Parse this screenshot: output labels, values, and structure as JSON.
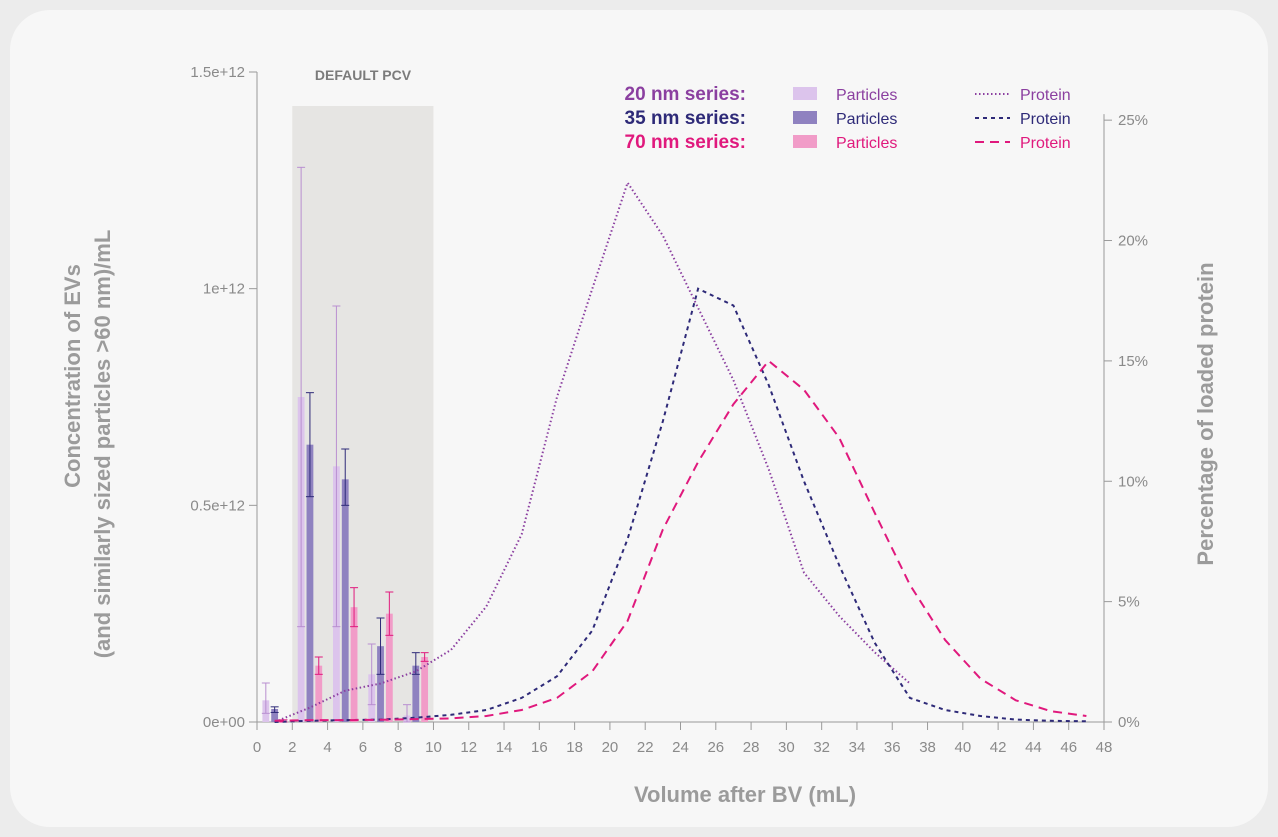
{
  "chart_data": {
    "type": "bar",
    "band_label": "DEFAULT PCV",
    "band_range": [
      2,
      10
    ],
    "xlabel": "Volume after BV (mL)",
    "ylabel_left_line1": "Concentration of EVs",
    "ylabel_left_line2": "(and similarly sized particles >60 nm)/mL",
    "ylabel_right": "Percentage of loaded protein",
    "xlim": [
      0,
      48
    ],
    "ylim_left": [
      0,
      1500000000000.0
    ],
    "ylim_right": [
      0,
      27
    ],
    "x_ticks": [
      "0",
      "2",
      "4",
      "6",
      "8",
      "10",
      "12",
      "14",
      "16",
      "18",
      "20",
      "22",
      "24",
      "26",
      "28",
      "30",
      "32",
      "34",
      "36",
      "38",
      "40",
      "42",
      "44",
      "46",
      "48"
    ],
    "y_left_ticks": [
      {
        "value": 0,
        "label": "0e+00"
      },
      {
        "value": 500000000000.0,
        "label": "0.5e+12"
      },
      {
        "value": 1000000000000.0,
        "label": "1e+12"
      },
      {
        "value": 1500000000000.0,
        "label": "1.5e+12"
      }
    ],
    "y_right_ticks": [
      {
        "value": 0,
        "label": "0%"
      },
      {
        "value": 5,
        "label": "5%"
      },
      {
        "value": 10,
        "label": "10%"
      },
      {
        "value": 15,
        "label": "15%"
      },
      {
        "value": 20,
        "label": "20%"
      },
      {
        "value": 25,
        "label": "25%"
      }
    ],
    "legend": {
      "rows": [
        {
          "series": "20 nm series:",
          "particles": "Particles",
          "protein": "Protein",
          "color": "#8b3fa0"
        },
        {
          "series": "35 nm series:",
          "particles": "Particles",
          "protein": "Protein",
          "color": "#2e2a78"
        },
        {
          "series": "70 nm series:",
          "particles": "Particles",
          "protein": "Protein",
          "color": "#e0197d"
        }
      ]
    },
    "bar_series": [
      {
        "series": "20 nm series",
        "color": "#dcc4ec",
        "err_color": "#b98fd0",
        "offset": -0.5,
        "points": [
          {
            "x": 0.5,
            "y": 50000000000.0,
            "lo": 20000000000.0,
            "hi": 90000000000.0
          },
          {
            "x": 2.5,
            "y": 750000000000.0,
            "lo": 220000000000.0,
            "hi": 1280000000000.0
          },
          {
            "x": 4.5,
            "y": 590000000000.0,
            "lo": 220000000000.0,
            "hi": 960000000000.0
          },
          {
            "x": 6.5,
            "y": 110000000000.0,
            "lo": 40000000000.0,
            "hi": 180000000000.0
          },
          {
            "x": 8.5,
            "y": 15000000000.0,
            "lo": 0,
            "hi": 40000000000.0
          }
        ]
      },
      {
        "series": "35 nm series",
        "color": "#8f82c0",
        "err_color": "#2e2a78",
        "offset": 0,
        "points": [
          {
            "x": 1,
            "y": 30000000000.0,
            "lo": 22000000000.0,
            "hi": 35000000000.0
          },
          {
            "x": 3,
            "y": 640000000000.0,
            "lo": 520000000000.0,
            "hi": 760000000000.0
          },
          {
            "x": 5,
            "y": 560000000000.0,
            "lo": 500000000000.0,
            "hi": 630000000000.0
          },
          {
            "x": 7,
            "y": 175000000000.0,
            "lo": 110000000000.0,
            "hi": 240000000000.0
          },
          {
            "x": 9,
            "y": 130000000000.0,
            "lo": 110000000000.0,
            "hi": 160000000000.0
          }
        ]
      },
      {
        "series": "70 nm series",
        "color": "#f19cc8",
        "err_color": "#e0197d",
        "offset": 0.5,
        "points": [
          {
            "x": 1.5,
            "y": 3000000000.0,
            "lo": 0,
            "hi": 5000000000.0
          },
          {
            "x": 3.5,
            "y": 130000000000.0,
            "lo": 110000000000.0,
            "hi": 150000000000.0
          },
          {
            "x": 5.5,
            "y": 265000000000.0,
            "lo": 220000000000.0,
            "hi": 310000000000.0
          },
          {
            "x": 7.5,
            "y": 250000000000.0,
            "lo": 200000000000.0,
            "hi": 300000000000.0
          },
          {
            "x": 9.5,
            "y": 150000000000.0,
            "lo": 140000000000.0,
            "hi": 160000000000.0
          }
        ]
      }
    ],
    "line_series": [
      {
        "series": "20 nm series",
        "style": "dotted",
        "color": "#8b3fa0",
        "x": [
          1,
          3,
          5,
          7,
          9,
          11,
          13,
          15,
          17,
          19,
          21,
          23,
          25,
          27,
          29,
          31,
          33,
          35,
          37
        ],
        "y": [
          0,
          0.6,
          1.3,
          1.6,
          2.1,
          3.0,
          4.8,
          7.8,
          13.5,
          18.0,
          22.4,
          20.2,
          17.2,
          14.2,
          10.5,
          6.2,
          4.4,
          2.9,
          1.6
        ]
      },
      {
        "series": "35 nm series",
        "style": "dashed-short",
        "color": "#2e2a78",
        "x": [
          1,
          3,
          5,
          7,
          9,
          11,
          13,
          15,
          17,
          19,
          21,
          23,
          25,
          27,
          29,
          31,
          33,
          35,
          37,
          39,
          41,
          43,
          45,
          47
        ],
        "y": [
          0,
          0.05,
          0.08,
          0.1,
          0.18,
          0.3,
          0.5,
          1.0,
          1.9,
          3.8,
          7.6,
          12.5,
          18.0,
          17.3,
          14.0,
          10.0,
          6.5,
          3.3,
          1.0,
          0.5,
          0.25,
          0.1,
          0.05,
          0.03
        ]
      },
      {
        "series": "70 nm series",
        "style": "dashed-long",
        "color": "#e0197d",
        "x": [
          1,
          3,
          5,
          7,
          9,
          11,
          13,
          15,
          17,
          19,
          21,
          23,
          25,
          27,
          29,
          31,
          33,
          35,
          37,
          39,
          41,
          43,
          45,
          47
        ],
        "y": [
          0.05,
          0.08,
          0.08,
          0.09,
          0.12,
          0.15,
          0.25,
          0.5,
          1.0,
          2.1,
          4.2,
          8.0,
          10.8,
          13.2,
          15.0,
          13.8,
          11.8,
          8.7,
          5.7,
          3.4,
          1.8,
          0.9,
          0.45,
          0.25
        ]
      }
    ]
  }
}
